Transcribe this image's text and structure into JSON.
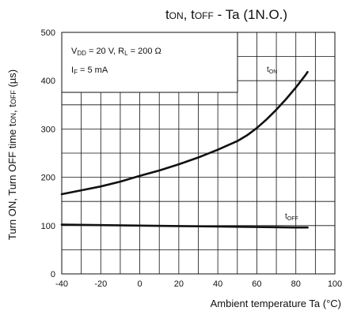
{
  "chart_data": {
    "type": "line",
    "title": {
      "t": "t",
      "on": "ON",
      "sep": ", t",
      "off": "OFF",
      "rest": " - Ta (1N.O.)"
    },
    "xlabel": "Ambient temperature Ta (°C)",
    "ylabel": {
      "part1": "Turn ON, Turn OFF time t",
      "on": "ON",
      "mid": ", t",
      "off": "OFF",
      "unit": " (µs)"
    },
    "xlim": [
      -40,
      100
    ],
    "ylim": [
      0,
      500
    ],
    "x_ticks": [
      "-40",
      "-20",
      "0",
      "20",
      "40",
      "60",
      "80",
      "100"
    ],
    "y_ticks": [
      "0",
      "100",
      "200",
      "300",
      "400",
      "500"
    ],
    "grid": true,
    "conditions": {
      "line1": {
        "v": "V",
        "dd": "DD",
        "mid": " = 20 V, R",
        "l": "L",
        "end": " = 200 Ω"
      },
      "line2": {
        "i": "I",
        "f": "F",
        "end": " = 5 mA"
      }
    },
    "series": [
      {
        "name": {
          "t": "t",
          "sub": "ON"
        },
        "x": [
          -40,
          -30,
          -20,
          -10,
          0,
          10,
          20,
          30,
          40,
          50,
          55,
          60,
          65,
          70,
          75,
          80,
          85,
          86
        ],
        "y": [
          165,
          173,
          181,
          191,
          203,
          214,
          227,
          241,
          257,
          275,
          287,
          302,
          320,
          340,
          362,
          386,
          412,
          418
        ]
      },
      {
        "name": {
          "t": "t",
          "sub": "OFF"
        },
        "x": [
          -40,
          -20,
          0,
          20,
          40,
          60,
          80,
          86
        ],
        "y": [
          102,
          101,
          100,
          99,
          98,
          97,
          96,
          96
        ]
      }
    ],
    "colors": {
      "line": "#111111",
      "grid": "#111111"
    }
  }
}
